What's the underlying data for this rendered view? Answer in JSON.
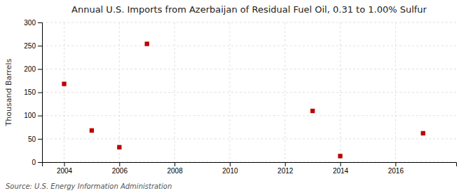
{
  "chart_data": {
    "type": "scatter",
    "title": "Annual U.S. Imports from Azerbaijan of Residual Fuel Oil, 0.31 to 1.00% Sulfur",
    "y_label": "Thousand Barrels",
    "annotations": [
      "Source: U.S. Energy Information Administration"
    ],
    "x": [
      2004,
      2005,
      2006,
      2007,
      2013,
      2014,
      2017
    ],
    "values": [
      168,
      68,
      32,
      254,
      110,
      13,
      62
    ],
    "color": "#bb0000",
    "marker": "square",
    "xlim": [
      2003.2,
      2018.2
    ],
    "ylim": [
      0,
      300
    ],
    "xticks": [
      2004,
      2006,
      2008,
      2010,
      2012,
      2014,
      2016
    ],
    "yticks": [
      0,
      50,
      100,
      150,
      200,
      250,
      300
    ],
    "grid": true
  }
}
